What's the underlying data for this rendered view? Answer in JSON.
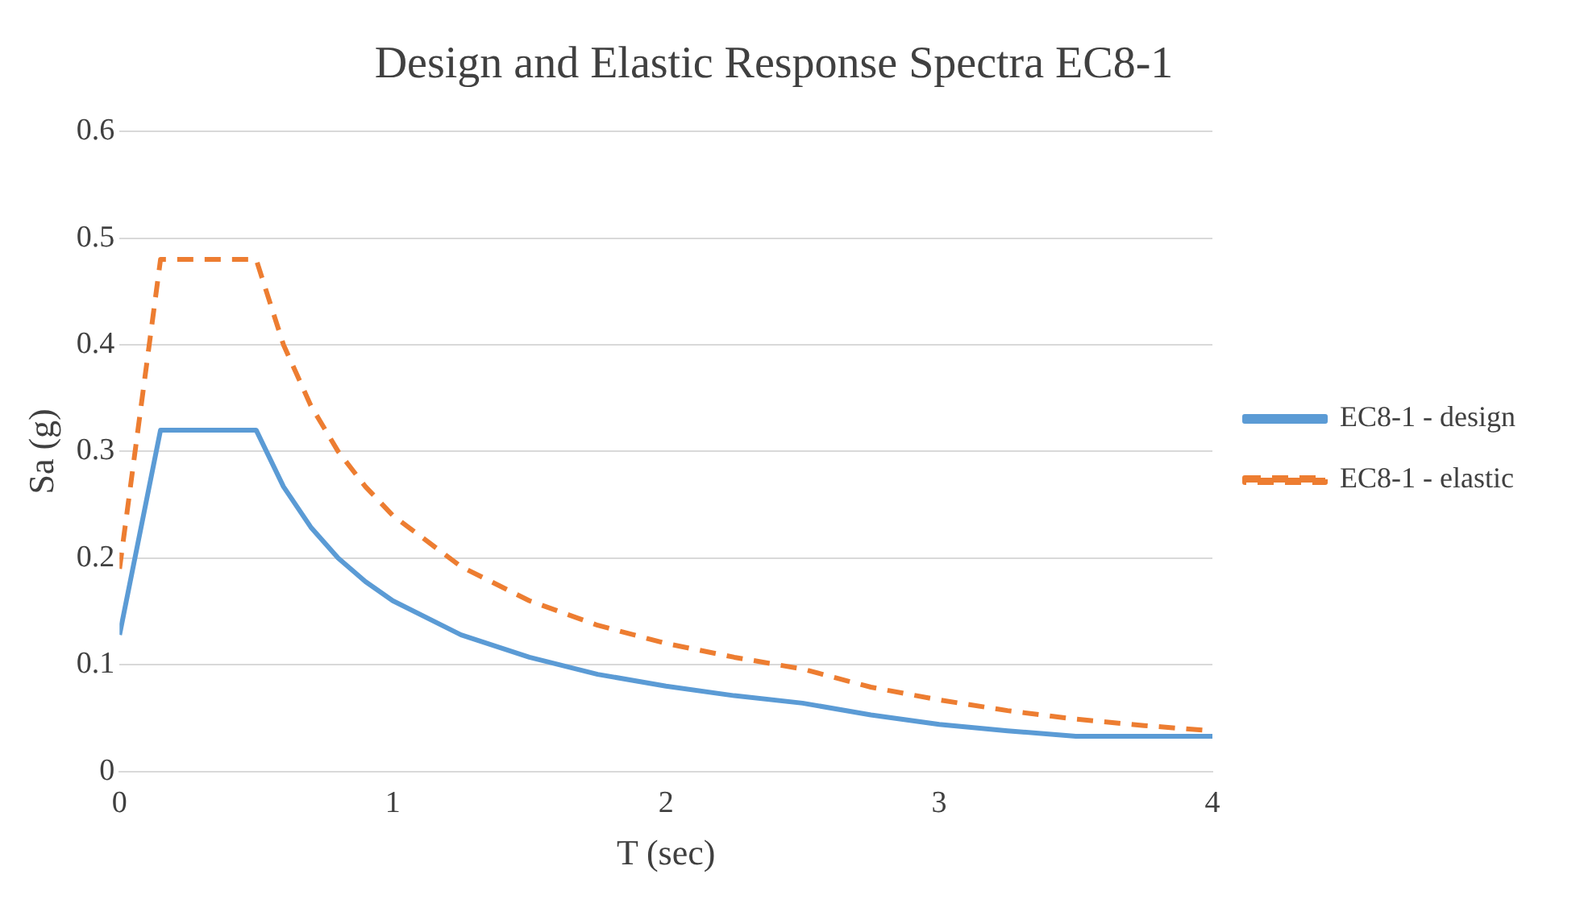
{
  "chart_data": {
    "type": "line",
    "title": "Design and Elastic Response Spectra EC8-1",
    "xlabel": "T (sec)",
    "ylabel": "Sa (g)",
    "xlim": [
      0,
      4
    ],
    "xticks": [
      0,
      1,
      2,
      3,
      4
    ],
    "ylim": [
      0,
      0.6
    ],
    "yticks": [
      0,
      0.1,
      0.2,
      0.3,
      0.4,
      0.5,
      0.6
    ],
    "grid": "y",
    "legend": "right",
    "marker": "none",
    "series": [
      {
        "name": "EC8-1 - design",
        "color": "#5b9bd5",
        "line_style": "solid",
        "x": [
          0,
          0.15,
          0.5,
          0.6,
          0.7,
          0.8,
          0.9,
          1,
          1.25,
          1.5,
          1.75,
          2,
          2.25,
          2.5,
          2.75,
          3,
          3.25,
          3.5,
          3.75,
          4
        ],
        "values": [
          0.128,
          0.32,
          0.32,
          0.267,
          0.229,
          0.2,
          0.178,
          0.16,
          0.128,
          0.107,
          0.091,
          0.08,
          0.071,
          0.064,
          0.053,
          0.044,
          0.038,
          0.033,
          0.033,
          0.033
        ]
      },
      {
        "name": "EC8-1 - elastic",
        "color": "#ed7d31",
        "line_style": "dashed",
        "x": [
          0,
          0.15,
          0.5,
          0.6,
          0.7,
          0.8,
          0.9,
          1,
          1.25,
          1.5,
          1.75,
          2,
          2.25,
          2.5,
          2.75,
          3,
          3.25,
          3.5,
          3.75,
          4
        ],
        "values": [
          0.19,
          0.48,
          0.48,
          0.4,
          0.343,
          0.3,
          0.267,
          0.24,
          0.192,
          0.16,
          0.137,
          0.12,
          0.107,
          0.096,
          0.079,
          0.067,
          0.057,
          0.049,
          0.043,
          0.038
        ]
      }
    ]
  }
}
